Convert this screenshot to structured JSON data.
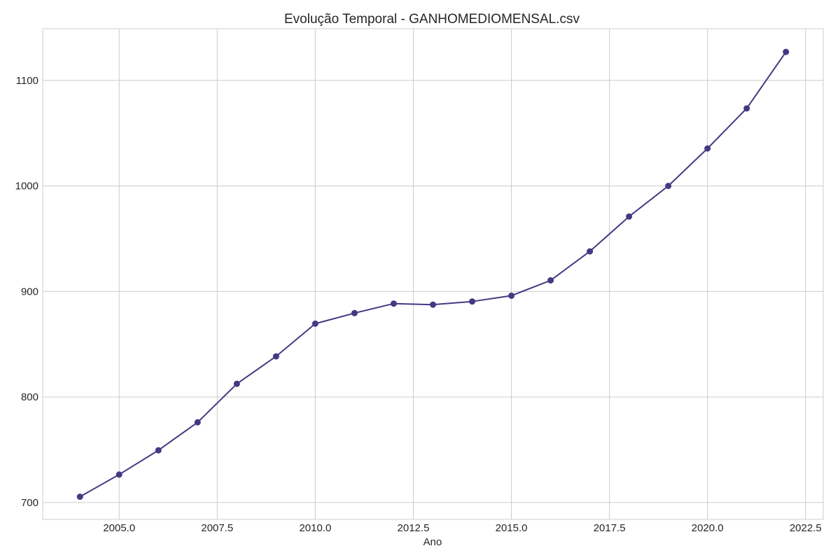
{
  "chart_data": {
    "type": "line",
    "title": "Evolução Temporal - GANHOMEDIOMENSAL.csv",
    "xlabel": "Ano",
    "ylabel": "",
    "xlim": [
      2003.05,
      2022.95
    ],
    "ylim": [
      684,
      1149
    ],
    "xticks": [
      2005.0,
      2007.5,
      2010.0,
      2012.5,
      2015.0,
      2017.5,
      2020.0,
      2022.5
    ],
    "xtick_labels": [
      "2005.0",
      "2007.5",
      "2010.0",
      "2012.5",
      "2015.0",
      "2017.5",
      "2020.0",
      "2022.5"
    ],
    "yticks": [
      700,
      800,
      900,
      1000,
      1100
    ],
    "ytick_labels": [
      "700",
      "800",
      "900",
      "1000",
      "1100"
    ],
    "grid": true,
    "colors": {
      "line": "#443983",
      "marker": "#443983",
      "grid": "#cccccc",
      "frame": "#cccccc"
    },
    "series": [
      {
        "x": [
          2004,
          2005,
          2006,
          2007,
          2008,
          2009,
          2010,
          2011,
          2012,
          2013,
          2014,
          2015,
          2016,
          2017,
          2018,
          2019,
          2020,
          2021,
          2022
        ],
        "y": [
          705.5,
          726.5,
          749.5,
          776,
          812.5,
          838.5,
          869.5,
          879.5,
          888.5,
          887.5,
          890.5,
          896,
          910.5,
          938,
          971,
          1000,
          1035.5,
          1073.5,
          1127
        ]
      }
    ]
  }
}
